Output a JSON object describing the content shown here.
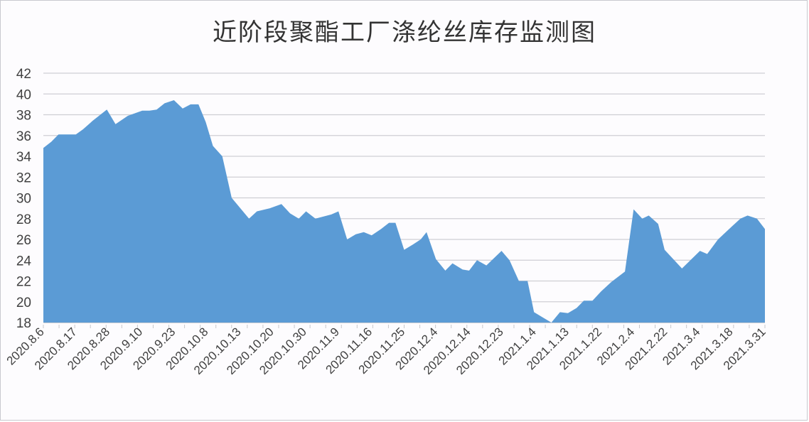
{
  "chart_data": {
    "type": "area",
    "title": "近阶段聚酯工厂涤纶丝库存监测图",
    "xlabel": "",
    "ylabel": "",
    "ylim": [
      18,
      42
    ],
    "yticks": [
      18,
      20,
      22,
      24,
      26,
      28,
      30,
      32,
      34,
      36,
      38,
      40,
      42
    ],
    "grid": true,
    "legend": "none",
    "fill_color": "#5b9bd5",
    "x_tick_labels": [
      "2020.8.6",
      "2020.8.17",
      "2020.8.28",
      "2020.9.10",
      "2020.9.23",
      "2020.10.8",
      "2020.10.13",
      "2020.10.20",
      "2020.10.30",
      "2020.11.9",
      "2020.11.16",
      "2020.11.25",
      "2020.12.4",
      "2020.12.14",
      "2020.12.23",
      "2021.1.4",
      "2021.1.13",
      "2021.1.22",
      "2021.2.4",
      "2021.2.22",
      "2021.3.4",
      "2021.3.18",
      "2021.3.31"
    ],
    "series": [
      {
        "name": "涤纶丝库存",
        "points": [
          [
            0,
            34.8
          ],
          [
            0.011,
            35.4
          ],
          [
            0.021,
            36.1
          ],
          [
            0.045,
            36.1
          ],
          [
            0.055,
            36.6
          ],
          [
            0.068,
            37.4
          ],
          [
            0.088,
            38.5
          ],
          [
            0.1,
            37.1
          ],
          [
            0.117,
            37.9
          ],
          [
            0.137,
            38.4
          ],
          [
            0.147,
            38.4
          ],
          [
            0.157,
            38.5
          ],
          [
            0.168,
            39.1
          ],
          [
            0.181,
            39.4
          ],
          [
            0.193,
            38.6
          ],
          [
            0.204,
            39.0
          ],
          [
            0.215,
            39.0
          ],
          [
            0.225,
            37.3
          ],
          [
            0.235,
            35.0
          ],
          [
            0.248,
            34.0
          ],
          [
            0.261,
            30.0
          ],
          [
            0.285,
            28.0
          ],
          [
            0.296,
            28.7
          ],
          [
            0.314,
            29.0
          ],
          [
            0.33,
            29.4
          ],
          [
            0.342,
            28.5
          ],
          [
            0.354,
            28.0
          ],
          [
            0.364,
            28.7
          ],
          [
            0.377,
            28.0
          ],
          [
            0.399,
            28.4
          ],
          [
            0.409,
            28.7
          ],
          [
            0.421,
            26.0
          ],
          [
            0.433,
            26.5
          ],
          [
            0.444,
            26.7
          ],
          [
            0.455,
            26.4
          ],
          [
            0.468,
            27.0
          ],
          [
            0.479,
            27.6
          ],
          [
            0.488,
            27.6
          ],
          [
            0.5,
            25.0
          ],
          [
            0.512,
            25.5
          ],
          [
            0.523,
            26.0
          ],
          [
            0.531,
            26.7
          ],
          [
            0.544,
            24.1
          ],
          [
            0.557,
            23.0
          ],
          [
            0.567,
            23.7
          ],
          [
            0.581,
            23.1
          ],
          [
            0.59,
            23.0
          ],
          [
            0.601,
            24.0
          ],
          [
            0.614,
            23.5
          ],
          [
            0.635,
            24.9
          ],
          [
            0.646,
            24.0
          ],
          [
            0.659,
            22.0
          ],
          [
            0.671,
            22.0
          ],
          [
            0.68,
            19.0
          ],
          [
            0.692,
            18.5
          ],
          [
            0.704,
            18.0
          ],
          [
            0.716,
            19.0
          ],
          [
            0.727,
            18.9
          ],
          [
            0.739,
            19.4
          ],
          [
            0.749,
            20.1
          ],
          [
            0.761,
            20.1
          ],
          [
            0.773,
            21.0
          ],
          [
            0.787,
            21.9
          ],
          [
            0.806,
            22.9
          ],
          [
            0.818,
            28.9
          ],
          [
            0.83,
            28.0
          ],
          [
            0.839,
            28.3
          ],
          [
            0.852,
            27.5
          ],
          [
            0.861,
            25.0
          ],
          [
            0.885,
            23.2
          ],
          [
            0.91,
            24.9
          ],
          [
            0.92,
            24.6
          ],
          [
            0.935,
            26.0
          ],
          [
            0.955,
            27.3
          ],
          [
            0.966,
            28.0
          ],
          [
            0.976,
            28.3
          ],
          [
            0.989,
            28.0
          ],
          [
            1.0,
            27.0
          ]
        ]
      }
    ]
  }
}
